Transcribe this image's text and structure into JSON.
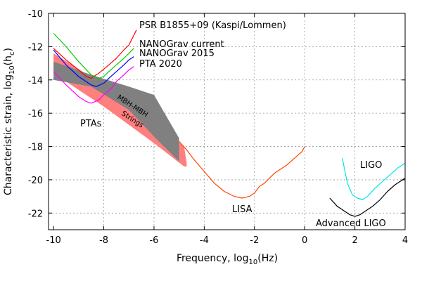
{
  "chart_data": {
    "type": "line",
    "xlabel_main": "Frequency, log",
    "xlabel_sub": "10",
    "xlabel_tail": "(Hz)",
    "ylabel_main": "Characteristic strain, log",
    "ylabel_sub": "10",
    "ylabel_paren_open": "(h",
    "ylabel_paren_sub": "c",
    "ylabel_paren_close": ")",
    "xlim": [
      -10.2,
      4
    ],
    "ylim": [
      -23,
      -10
    ],
    "grid": true,
    "x_ticks": [
      -10,
      -8,
      -6,
      -4,
      -2,
      0,
      2,
      4
    ],
    "x_tick_labels": [
      "-10",
      "-8",
      "-6",
      "-4",
      "-2",
      "0",
      "2",
      "4"
    ],
    "y_ticks": [
      -22,
      -20,
      -18,
      -16,
      -14,
      -12,
      -10
    ],
    "y_tick_labels": [
      "-22",
      "-20",
      "-18",
      "-16",
      "-14",
      "-12",
      "-10"
    ],
    "series": [
      {
        "name": "PSR B1855+09 (Kaspi/Lommen)",
        "color": "#ff0000",
        "x": [
          -10.0,
          -9.5,
          -9.0,
          -8.7,
          -8.5,
          -8.2,
          -7.8,
          -7.5,
          -7.2,
          -7.0,
          -6.7
        ],
        "y": [
          -12.1,
          -12.8,
          -13.4,
          -13.8,
          -13.9,
          -13.6,
          -13.1,
          -12.7,
          -12.2,
          -11.9,
          -11.0
        ]
      },
      {
        "name": "NANOGrav current",
        "color": "#00cc00",
        "x": [
          -10.0,
          -9.5,
          -9.0,
          -8.5,
          -8.2,
          -8.0,
          -7.8,
          -7.5,
          -7.2,
          -7.0,
          -6.8
        ],
        "y": [
          -11.2,
          -12.0,
          -12.9,
          -13.7,
          -13.9,
          -13.8,
          -13.5,
          -13.1,
          -12.7,
          -12.4,
          -12.1
        ]
      },
      {
        "name": "NANOGrav 2015",
        "color": "#0000ff",
        "x": [
          -10.0,
          -9.5,
          -9.0,
          -8.5,
          -8.3,
          -8.0,
          -7.8,
          -7.5,
          -7.2,
          -7.0,
          -6.8
        ],
        "y": [
          -12.2,
          -13.1,
          -13.8,
          -14.3,
          -14.4,
          -14.2,
          -13.9,
          -13.5,
          -13.1,
          -12.8,
          -12.6
        ]
      },
      {
        "name": "PTA 2020",
        "color": "#ff00ff",
        "x": [
          -10.0,
          -9.5,
          -9.0,
          -8.7,
          -8.5,
          -8.2,
          -8.0,
          -7.7,
          -7.5,
          -7.2,
          -7.0,
          -6.8
        ],
        "y": [
          -13.5,
          -14.3,
          -15.0,
          -15.3,
          -15.4,
          -15.2,
          -14.9,
          -14.5,
          -14.1,
          -13.7,
          -13.4,
          -13.2
        ]
      },
      {
        "name": "LISA",
        "color": "#ff4400",
        "x": [
          -5.0,
          -4.7,
          -4.4,
          -4.0,
          -3.6,
          -3.2,
          -2.8,
          -2.5,
          -2.2,
          -2.0,
          -1.8,
          -1.6,
          -1.4,
          -1.2,
          -1.0,
          -0.7,
          -0.4,
          -0.1,
          0.0
        ],
        "y": [
          -17.7,
          -18.2,
          -18.8,
          -19.5,
          -20.2,
          -20.7,
          -21.0,
          -21.1,
          -21.0,
          -20.8,
          -20.4,
          -20.2,
          -19.9,
          -19.6,
          -19.4,
          -19.1,
          -18.7,
          -18.3,
          -18.0
        ]
      },
      {
        "name": "Advanced LIGO",
        "color": "#000000",
        "x": [
          1.0,
          1.3,
          1.6,
          1.8,
          2.0,
          2.2,
          2.4,
          2.7,
          3.0,
          3.3,
          3.6,
          4.0
        ],
        "y": [
          -21.1,
          -21.6,
          -21.9,
          -22.1,
          -22.2,
          -22.1,
          -21.9,
          -21.6,
          -21.2,
          -20.7,
          -20.3,
          -19.9
        ]
      },
      {
        "name": "LIGO",
        "color": "#00e5e5",
        "x": [
          1.5,
          1.7,
          1.9,
          2.1,
          2.3,
          2.5,
          2.8,
          3.1,
          3.4,
          3.7,
          4.0
        ],
        "y": [
          -18.7,
          -20.2,
          -20.9,
          -21.1,
          -21.2,
          -21.0,
          -20.5,
          -20.1,
          -19.7,
          -19.3,
          -19.0
        ]
      }
    ],
    "bands": [
      {
        "name": "Strings",
        "color": "#ff7f7f",
        "upper": [
          [
            -10.0,
            -12.4
          ],
          [
            -8.0,
            -14.3
          ],
          [
            -6.0,
            -16.6
          ],
          [
            -4.8,
            -18.0
          ],
          [
            -4.7,
            -19.0
          ]
        ],
        "lower": [
          [
            -10.0,
            -13.6
          ],
          [
            -8.0,
            -15.6
          ],
          [
            -6.0,
            -17.8
          ],
          [
            -4.8,
            -19.2
          ],
          [
            -4.7,
            -19.2
          ]
        ]
      },
      {
        "name": "MBH-MBH",
        "color": "#808080",
        "upper": [
          [
            -10.0,
            -12.9
          ],
          [
            -8.5,
            -13.7
          ],
          [
            -7.0,
            -14.4
          ],
          [
            -6.0,
            -14.9
          ],
          [
            -5.0,
            -17.5
          ]
        ],
        "lower": [
          [
            -10.0,
            -14.0
          ],
          [
            -8.5,
            -14.4
          ],
          [
            -7.0,
            -15.8
          ],
          [
            -6.0,
            -17.4
          ],
          [
            -5.0,
            -18.9
          ]
        ]
      }
    ],
    "annotations": {
      "psr_label": "PSR B1855+09 (Kaspi/Lommen)",
      "nanograv_current_label": "NANOGrav current",
      "nanograv_2015_label": "NANOGrav 2015",
      "pta2020_label": "PTA 2020",
      "ptas_label": "PTAs",
      "mbh_label": "MBH-MBH",
      "strings_label": "Strings",
      "lisa_label": "LISA",
      "ligo_label": "LIGO",
      "advanced_ligo_label": "Advanced LIGO"
    }
  }
}
